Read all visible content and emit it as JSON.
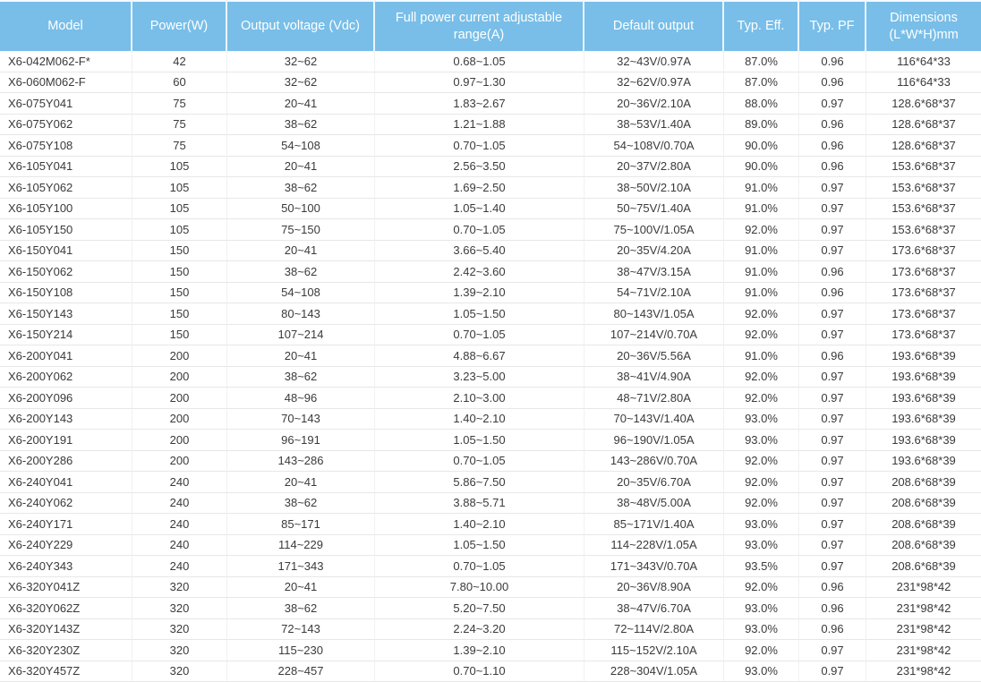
{
  "colors": {
    "header_bg": "#78bee8",
    "header_text": "#ffffff",
    "body_text": "#3a3a3a",
    "row_divider": "#e7e7e7",
    "column_divider": "#f1f1f1"
  },
  "table": {
    "columns": [
      {
        "key": "model",
        "label": "Model"
      },
      {
        "key": "power-w",
        "label": "Power(W)"
      },
      {
        "key": "output-voltage",
        "label": "Output voltage (Vdc)"
      },
      {
        "key": "current-range",
        "label": "Full power current adjustable range(A)"
      },
      {
        "key": "default-output",
        "label": "Default output"
      },
      {
        "key": "typ-eff",
        "label": "Typ. Eff."
      },
      {
        "key": "typ-pf",
        "label": "Typ. PF"
      },
      {
        "key": "dimensions",
        "label": "Dimensions (L*W*H)mm"
      }
    ],
    "rows": [
      [
        "X6-042M062-F*",
        "42",
        "32~62",
        "0.68~1.05",
        "32~43V/0.97A",
        "87.0%",
        "0.96",
        "116*64*33"
      ],
      [
        "X6-060M062-F",
        "60",
        "32~62",
        "0.97~1.30",
        "32~62V/0.97A",
        "87.0%",
        "0.96",
        "116*64*33"
      ],
      [
        "X6-075Y041",
        "75",
        "20~41",
        "1.83~2.67",
        "20~36V/2.10A",
        "88.0%",
        "0.97",
        "128.6*68*37"
      ],
      [
        "X6-075Y062",
        "75",
        "38~62",
        "1.21~1.88",
        "38~53V/1.40A",
        "89.0%",
        "0.96",
        "128.6*68*37"
      ],
      [
        "X6-075Y108",
        "75",
        "54~108",
        "0.70~1.05",
        "54~108V/0.70A",
        "90.0%",
        "0.96",
        "128.6*68*37"
      ],
      [
        "X6-105Y041",
        "105",
        "20~41",
        "2.56~3.50",
        "20~37V/2.80A",
        "90.0%",
        "0.96",
        "153.6*68*37"
      ],
      [
        "X6-105Y062",
        "105",
        "38~62",
        "1.69~2.50",
        "38~50V/2.10A",
        "91.0%",
        "0.97",
        "153.6*68*37"
      ],
      [
        "X6-105Y100",
        "105",
        "50~100",
        "1.05~1.40",
        "50~75V/1.40A",
        "91.0%",
        "0.97",
        "153.6*68*37"
      ],
      [
        "X6-105Y150",
        "105",
        "75~150",
        "0.70~1.05",
        "75~100V/1.05A",
        "92.0%",
        "0.97",
        "153.6*68*37"
      ],
      [
        "X6-150Y041",
        "150",
        "20~41",
        "3.66~5.40",
        "20~35V/4.20A",
        "91.0%",
        "0.97",
        "173.6*68*37"
      ],
      [
        "X6-150Y062",
        "150",
        "38~62",
        "2.42~3.60",
        "38~47V/3.15A",
        "91.0%",
        "0.96",
        "173.6*68*37"
      ],
      [
        "X6-150Y108",
        "150",
        "54~108",
        "1.39~2.10",
        "54~71V/2.10A",
        "91.0%",
        "0.96",
        "173.6*68*37"
      ],
      [
        "X6-150Y143",
        "150",
        "80~143",
        "1.05~1.50",
        "80~143V/1.05A",
        "92.0%",
        "0.97",
        "173.6*68*37"
      ],
      [
        "X6-150Y214",
        "150",
        "107~214",
        "0.70~1.05",
        "107~214V/0.70A",
        "92.0%",
        "0.97",
        "173.6*68*37"
      ],
      [
        "X6-200Y041",
        "200",
        "20~41",
        "4.88~6.67",
        "20~36V/5.56A",
        "91.0%",
        "0.96",
        "193.6*68*39"
      ],
      [
        "X6-200Y062",
        "200",
        "38~62",
        "3.23~5.00",
        "38~41V/4.90A",
        "92.0%",
        "0.97",
        "193.6*68*39"
      ],
      [
        "X6-200Y096",
        "200",
        "48~96",
        "2.10~3.00",
        "48~71V/2.80A",
        "92.0%",
        "0.97",
        "193.6*68*39"
      ],
      [
        "X6-200Y143",
        "200",
        "70~143",
        "1.40~2.10",
        "70~143V/1.40A",
        "93.0%",
        "0.97",
        "193.6*68*39"
      ],
      [
        "X6-200Y191",
        "200",
        "96~191",
        "1.05~1.50",
        "96~190V/1.05A",
        "93.0%",
        "0.97",
        "193.6*68*39"
      ],
      [
        "X6-200Y286",
        "200",
        "143~286",
        "0.70~1.05",
        "143~286V/0.70A",
        "92.0%",
        "0.97",
        "193.6*68*39"
      ],
      [
        "X6-240Y041",
        "240",
        "20~41",
        "5.86~7.50",
        "20~35V/6.70A",
        "92.0%",
        "0.97",
        "208.6*68*39"
      ],
      [
        "X6-240Y062",
        "240",
        "38~62",
        "3.88~5.71",
        "38~48V/5.00A",
        "92.0%",
        "0.97",
        "208.6*68*39"
      ],
      [
        "X6-240Y171",
        "240",
        "85~171",
        "1.40~2.10",
        "85~171V/1.40A",
        "93.0%",
        "0.97",
        "208.6*68*39"
      ],
      [
        "X6-240Y229",
        "240",
        "114~229",
        "1.05~1.50",
        "114~228V/1.05A",
        "93.0%",
        "0.97",
        "208.6*68*39"
      ],
      [
        "X6-240Y343",
        "240",
        "171~343",
        "0.70~1.05",
        "171~343V/0.70A",
        "93.5%",
        "0.97",
        "208.6*68*39"
      ],
      [
        "X6-320Y041Z",
        "320",
        "20~41",
        "7.80~10.00",
        "20~36V/8.90A",
        "92.0%",
        "0.96",
        "231*98*42"
      ],
      [
        "X6-320Y062Z",
        "320",
        "38~62",
        "5.20~7.50",
        "38~47V/6.70A",
        "93.0%",
        "0.96",
        "231*98*42"
      ],
      [
        "X6-320Y143Z",
        "320",
        "72~143",
        "2.24~3.20",
        "72~114V/2.80A",
        "93.0%",
        "0.96",
        "231*98*42"
      ],
      [
        "X6-320Y230Z",
        "320",
        "115~230",
        "1.39~2.10",
        "115~152V/2.10A",
        "92.0%",
        "0.97",
        "231*98*42"
      ],
      [
        "X6-320Y457Z",
        "320",
        "228~457",
        "0.70~1.10",
        "228~304V/1.05A",
        "93.0%",
        "0.97",
        "231*98*42"
      ]
    ]
  }
}
